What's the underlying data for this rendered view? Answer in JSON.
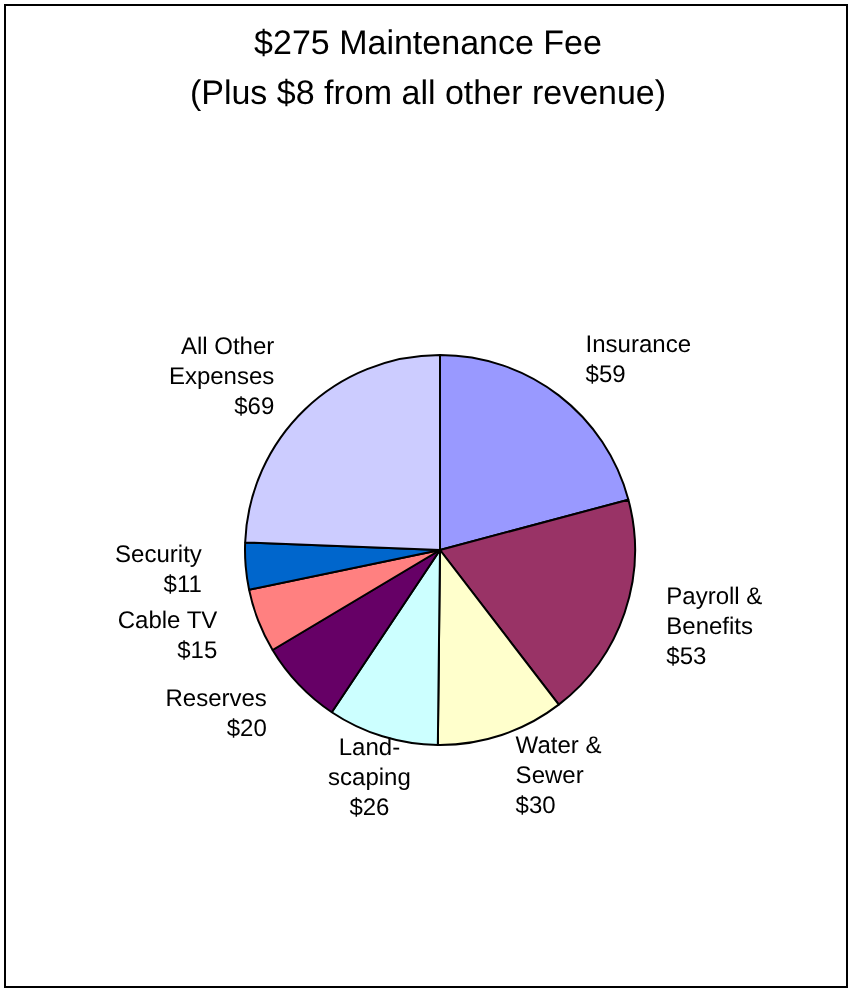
{
  "chart_data": {
    "type": "pie",
    "title": "$275 Maintenance Fee",
    "subtitle": "(Plus $8 from all other revenue)",
    "categories": [
      "Insurance",
      "Payroll &\nBenefits",
      "Water &\nSewer",
      "Land-\nscaping",
      "Reserves",
      "Cable TV",
      "Security",
      "All Other\nExpenses"
    ],
    "values": [
      59,
      53,
      30,
      26,
      20,
      15,
      11,
      69
    ],
    "value_labels": [
      "$59",
      "$53",
      "$30",
      "$26",
      "$20",
      "$15",
      "$11",
      "$69"
    ],
    "colors": [
      "#9999ff",
      "#993366",
      "#ffffcc",
      "#ccffff",
      "#660066",
      "#ff8080",
      "#0066cc",
      "#ccccff"
    ],
    "legend": false
  }
}
